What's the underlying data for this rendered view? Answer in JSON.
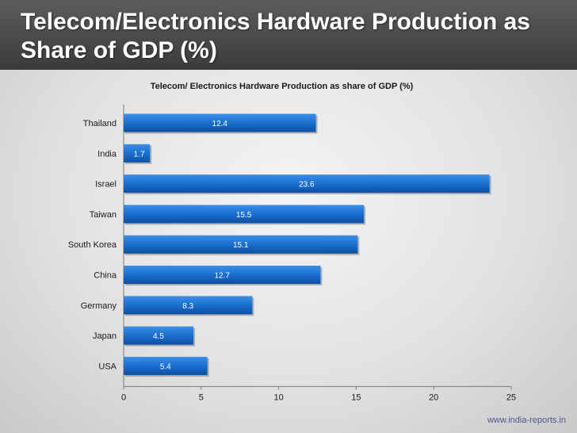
{
  "slide": {
    "title": "Telecom/Electronics Hardware Production as Share of GDP (%)",
    "source": "www.india-reports.in"
  },
  "colors": {
    "bar": "#1a6fd0",
    "bar_light": "#3b8fe8",
    "bar_dark": "#0d4fa0",
    "title_bar": "#4a4a4a"
  },
  "chart_data": {
    "type": "bar",
    "orientation": "horizontal",
    "title": "Telecom/ Electronics Hardware Production as share of GDP (%)",
    "categories": [
      "Thailand",
      "India",
      "Israel",
      "Taiwan",
      "South Korea",
      "China",
      "Germany",
      "Japan",
      "USA"
    ],
    "values": [
      12.4,
      1.7,
      23.6,
      15.5,
      15.1,
      12.7,
      8.3,
      4.5,
      5.4
    ],
    "xlim": [
      0,
      25
    ],
    "xticks": [
      0,
      5,
      10,
      15,
      20,
      25
    ],
    "xlabel": "",
    "ylabel": "",
    "grid": false,
    "legend": "none"
  }
}
